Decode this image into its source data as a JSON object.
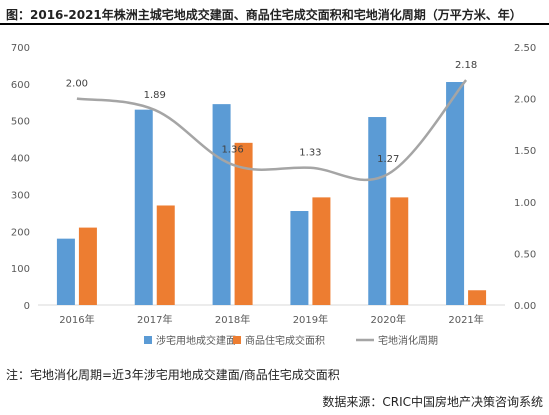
{
  "chart_data": {
    "type": "bar",
    "title": "图：2016-2021年株洲主城宅地成交建面、商品住宅成交面积和宅地消化周期（万平方米、年）",
    "categories": [
      "2016年",
      "2017年",
      "2018年",
      "2019年",
      "2020年",
      "2021年"
    ],
    "series": [
      {
        "name": "涉宅用地成交建面",
        "axis": "left",
        "color": "#5b9bd5",
        "values": [
          180,
          530,
          545,
          255,
          510,
          605
        ]
      },
      {
        "name": "商品住宅成交面积",
        "axis": "left",
        "color": "#ed7d31",
        "values": [
          210,
          270,
          440,
          292,
          292,
          40
        ]
      },
      {
        "name": "宅地消化周期",
        "axis": "right",
        "type": "line",
        "color": "#a5a5a5",
        "values": [
          2.0,
          1.89,
          1.36,
          1.33,
          1.27,
          2.18
        ],
        "labels": [
          "2.00",
          "1.89",
          "1.36",
          "1.33",
          "1.27",
          "2.18"
        ]
      }
    ],
    "left_axis": {
      "ylim": [
        0,
        700
      ],
      "ticks": [
        "0",
        "100",
        "200",
        "300",
        "400",
        "500",
        "600",
        "700"
      ]
    },
    "right_axis": {
      "ylim": [
        0,
        2.5
      ],
      "ticks": [
        "0.00",
        "0.50",
        "1.00",
        "1.50",
        "2.00",
        "2.50"
      ]
    },
    "legend_position": "bottom",
    "grid": false
  },
  "note": "注：宅地消化周期=近3年涉宅用地成交建面/商品住宅成交面积",
  "source": "数据来源：CRIC中国房地产决策咨询系统"
}
